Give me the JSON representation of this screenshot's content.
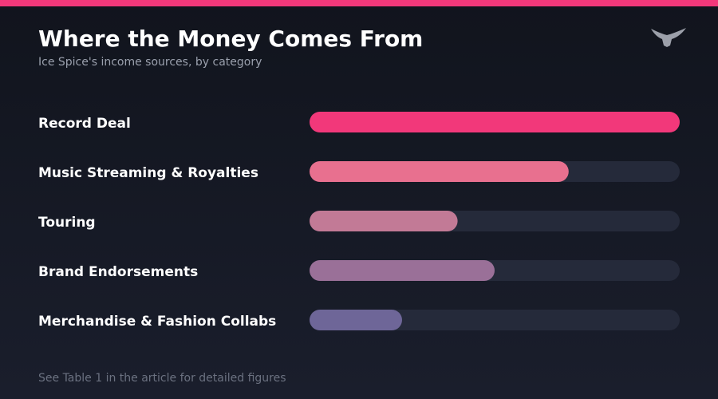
{
  "chart_data": {
    "type": "bar",
    "orientation": "horizontal",
    "title": "Where the Money Comes From",
    "subtitle": "Ice Spice's income sources, by category",
    "footnote": "See Table 1 in the article for detailed figures",
    "categories": [
      "Record Deal",
      "Music Streaming & Royalties",
      "Touring",
      "Brand Endorsements",
      "Merchandise & Fashion Collabs"
    ],
    "values": [
      100,
      70,
      40,
      50,
      25
    ],
    "colors": [
      "#f2387a",
      "#e8708f",
      "#c27a96",
      "#9a7098",
      "#6e6698"
    ],
    "xlim": [
      0,
      100
    ]
  }
}
